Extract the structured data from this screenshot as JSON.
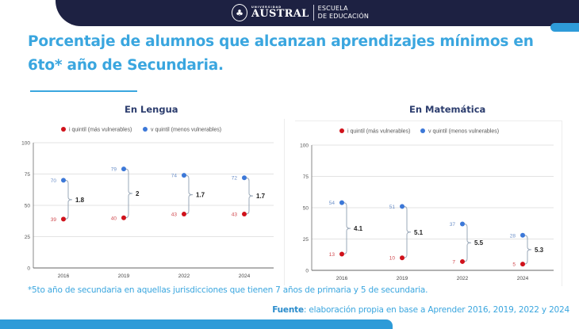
{
  "header": {
    "university_small": "UNIVERSIDAD",
    "university": "AUSTRAL",
    "school_line1": "ESCUELA",
    "school_line2": "DE EDUCACIÓN",
    "emblem_icon": "tree-emblem-icon"
  },
  "title": "Porcentaje de alumnos que alcanzan aprendizajes mínimos en 6to* año de Secundaria.",
  "colors": {
    "brand_dark": "#1d2142",
    "accent_blue": "#3aa6df",
    "series_low": "#d0121b",
    "series_high": "#3c78d8"
  },
  "chart_data": [
    {
      "type": "scatter",
      "title": "En Lengua",
      "categories": [
        "2016",
        "2019",
        "2022",
        "2024"
      ],
      "series": [
        {
          "name": "i quintil (más vulnerables)",
          "color": "#d0121b",
          "values": [
            39,
            40,
            43,
            43
          ]
        },
        {
          "name": "v quintil (menos vulnerables)",
          "color": "#3c78d8",
          "values": [
            70,
            79,
            74,
            72
          ]
        }
      ],
      "annotations": [
        "1.8",
        "2",
        "1.7",
        "1.7"
      ],
      "annotation_meaning": "brecha (ratio v quintil / i quintil)",
      "ylim": [
        0,
        100
      ],
      "yticks": [
        0,
        25,
        50,
        75,
        100
      ],
      "xlabel": "",
      "ylabel": "",
      "grid": true,
      "legend": "top-center"
    },
    {
      "type": "scatter",
      "title": "En Matemática",
      "categories": [
        "2016",
        "2019",
        "2022",
        "2024"
      ],
      "series": [
        {
          "name": "i quintil (más vulnerables)",
          "color": "#d0121b",
          "values": [
            13,
            10,
            7,
            5
          ]
        },
        {
          "name": "v quintil (menos vulnerables)",
          "color": "#3c78d8",
          "values": [
            54,
            51,
            37,
            28
          ]
        }
      ],
      "annotations": [
        "4.1",
        "5.1",
        "5.5",
        "5.3"
      ],
      "annotation_meaning": "brecha (ratio v quintil / i quintil)",
      "ylim": [
        0,
        100
      ],
      "yticks": [
        0,
        25,
        50,
        75,
        100
      ],
      "xlabel": "",
      "ylabel": "",
      "grid": true,
      "legend": "top-center"
    }
  ],
  "footnote": "*5to año de secundaria en aquellas jurisdicciones que tienen 7 años de primaria y 5 de secundaria.",
  "source": {
    "label": "Fuente",
    "text": ": elaboración propia en base a Aprender 2016, 2019, 2022 y 2024"
  }
}
